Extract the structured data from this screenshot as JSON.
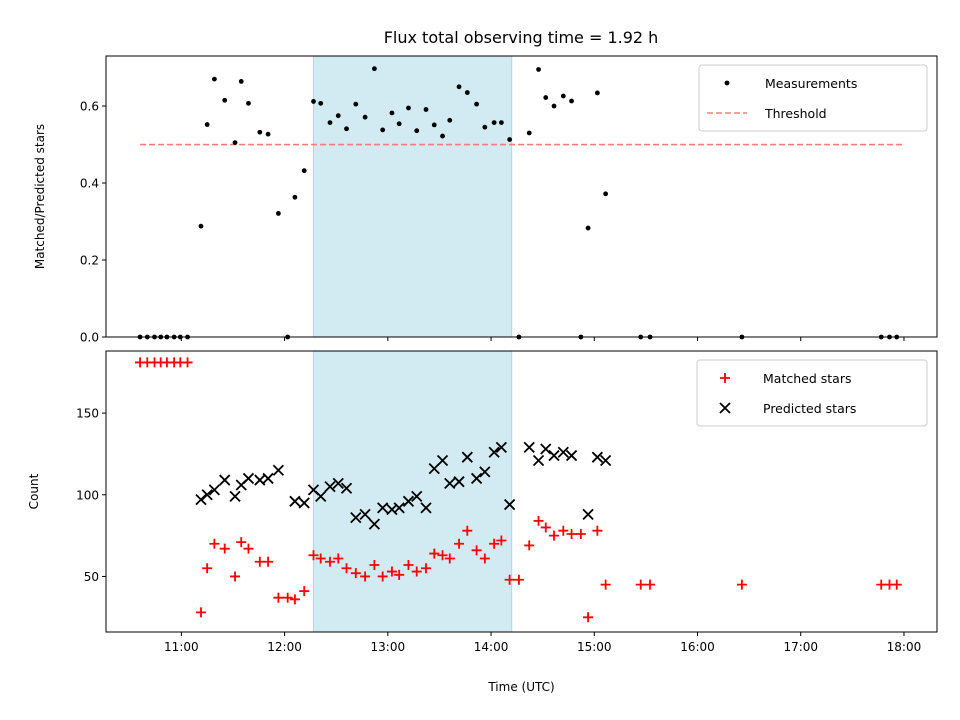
{
  "title": "Flux total observing time = 1.92 h",
  "colors": {
    "measurement": "#000000",
    "threshold": "#ff7b7b",
    "matched": "#ff0000",
    "predicted": "#000000",
    "span": "#add8e6"
  },
  "chart_data": [
    {
      "type": "scatter",
      "ylabel": "Matched/Predicted stars",
      "xlim": [
        10.27,
        18.32
      ],
      "ylim": [
        0,
        0.73
      ],
      "yticks": [
        "0.0",
        "0.2",
        "0.4",
        "0.6"
      ],
      "ytick_values": [
        0,
        0.2,
        0.4,
        0.6
      ],
      "xticks_at": [
        11,
        12,
        13,
        14,
        15,
        16,
        17,
        18
      ],
      "shaded_span": [
        12.28,
        14.2
      ],
      "legend": {
        "position": "upper right",
        "entries": [
          "Measurements",
          "Threshold"
        ]
      },
      "threshold": {
        "y": 0.5,
        "x_range": [
          10.6,
          18.0
        ]
      },
      "series": [
        {
          "name": "Measurements",
          "marker": "dot",
          "points": [
            [
              10.6,
              0
            ],
            [
              10.67,
              0
            ],
            [
              10.74,
              0
            ],
            [
              10.8,
              0
            ],
            [
              10.86,
              0
            ],
            [
              10.93,
              0
            ],
            [
              10.99,
              0
            ],
            [
              11.06,
              0
            ],
            [
              11.19,
              0.288
            ],
            [
              11.25,
              0.552
            ],
            [
              11.32,
              0.67
            ],
            [
              11.42,
              0.615
            ],
            [
              11.52,
              0.505
            ],
            [
              11.58,
              0.664
            ],
            [
              11.65,
              0.607
            ],
            [
              11.76,
              0.532
            ],
            [
              11.84,
              0.527
            ],
            [
              11.94,
              0.321
            ],
            [
              12.03,
              0
            ],
            [
              12.1,
              0.363
            ],
            [
              12.19,
              0.432
            ],
            [
              12.28,
              0.612
            ],
            [
              12.35,
              0.607
            ],
            [
              12.44,
              0.557
            ],
            [
              12.52,
              0.575
            ],
            [
              12.6,
              0.541
            ],
            [
              12.69,
              0.605
            ],
            [
              12.78,
              0.571
            ],
            [
              12.87,
              0.697
            ],
            [
              12.95,
              0.538
            ],
            [
              13.04,
              0.582
            ],
            [
              13.11,
              0.554
            ],
            [
              13.2,
              0.595
            ],
            [
              13.28,
              0.536
            ],
            [
              13.37,
              0.591
            ],
            [
              13.45,
              0.551
            ],
            [
              13.53,
              0.522
            ],
            [
              13.6,
              0.563
            ],
            [
              13.69,
              0.65
            ],
            [
              13.77,
              0.635
            ],
            [
              13.86,
              0.605
            ],
            [
              13.94,
              0.545
            ],
            [
              14.03,
              0.557
            ],
            [
              14.1,
              0.557
            ],
            [
              14.18,
              0.513
            ],
            [
              14.27,
              0
            ],
            [
              14.37,
              0.53
            ],
            [
              14.46,
              0.695
            ],
            [
              14.53,
              0.622
            ],
            [
              14.61,
              0.6
            ],
            [
              14.7,
              0.626
            ],
            [
              14.78,
              0.613
            ],
            [
              14.87,
              0
            ],
            [
              14.94,
              0.283
            ],
            [
              15.03,
              0.634
            ],
            [
              15.11,
              0.372
            ],
            [
              15.45,
              0
            ],
            [
              15.54,
              0
            ],
            [
              16.43,
              0
            ],
            [
              17.78,
              0
            ],
            [
              17.86,
              0
            ],
            [
              17.93,
              0
            ]
          ]
        }
      ]
    },
    {
      "type": "scatter",
      "xlabel": "Time (UTC)",
      "ylabel": "Count",
      "xlim": [
        10.27,
        18.32
      ],
      "ylim": [
        16,
        188
      ],
      "yticks": [
        "50",
        "100",
        "150"
      ],
      "ytick_values": [
        50,
        100,
        150
      ],
      "xticks": [
        "11:00",
        "12:00",
        "13:00",
        "14:00",
        "15:00",
        "16:00",
        "17:00",
        "18:00"
      ],
      "xtick_values": [
        11,
        12,
        13,
        14,
        15,
        16,
        17,
        18
      ],
      "shaded_span": [
        12.28,
        14.2
      ],
      "legend": {
        "position": "upper right",
        "entries": [
          "Matched stars",
          "Predicted stars"
        ]
      },
      "series": [
        {
          "name": "Matched stars",
          "marker": "plus",
          "points": [
            [
              10.6,
              181
            ],
            [
              10.67,
              181
            ],
            [
              10.74,
              181
            ],
            [
              10.8,
              181
            ],
            [
              10.86,
              181
            ],
            [
              10.93,
              181
            ],
            [
              10.99,
              181
            ],
            [
              11.06,
              181
            ],
            [
              11.19,
              28
            ],
            [
              11.25,
              55
            ],
            [
              11.32,
              70
            ],
            [
              11.42,
              67
            ],
            [
              11.52,
              50
            ],
            [
              11.58,
              71
            ],
            [
              11.65,
              67
            ],
            [
              11.76,
              59
            ],
            [
              11.84,
              59
            ],
            [
              11.94,
              37
            ],
            [
              12.03,
              37
            ],
            [
              12.1,
              36
            ],
            [
              12.19,
              41
            ],
            [
              12.28,
              63
            ],
            [
              12.35,
              61
            ],
            [
              12.44,
              59
            ],
            [
              12.52,
              61
            ],
            [
              12.6,
              55
            ],
            [
              12.69,
              52
            ],
            [
              12.78,
              50
            ],
            [
              12.87,
              57
            ],
            [
              12.95,
              50
            ],
            [
              13.04,
              53
            ],
            [
              13.11,
              51
            ],
            [
              13.2,
              57
            ],
            [
              13.28,
              53
            ],
            [
              13.37,
              55
            ],
            [
              13.45,
              64
            ],
            [
              13.53,
              63
            ],
            [
              13.6,
              61
            ],
            [
              13.69,
              70
            ],
            [
              13.77,
              78
            ],
            [
              13.86,
              66
            ],
            [
              13.94,
              61
            ],
            [
              14.03,
              70
            ],
            [
              14.1,
              72
            ],
            [
              14.18,
              48
            ],
            [
              14.27,
              48
            ],
            [
              14.37,
              69
            ],
            [
              14.46,
              84
            ],
            [
              14.53,
              80
            ],
            [
              14.61,
              75
            ],
            [
              14.7,
              78
            ],
            [
              14.78,
              76
            ],
            [
              14.87,
              76
            ],
            [
              14.94,
              25
            ],
            [
              15.03,
              78
            ],
            [
              15.11,
              45
            ],
            [
              15.45,
              45
            ],
            [
              15.54,
              45
            ],
            [
              16.43,
              45
            ],
            [
              17.78,
              45
            ],
            [
              17.86,
              45
            ],
            [
              17.93,
              45
            ]
          ]
        },
        {
          "name": "Predicted stars",
          "marker": "x",
          "points": [
            [
              11.19,
              97
            ],
            [
              11.25,
              100
            ],
            [
              11.32,
              103
            ],
            [
              11.42,
              109
            ],
            [
              11.52,
              99
            ],
            [
              11.58,
              106
            ],
            [
              11.65,
              110
            ],
            [
              11.76,
              109
            ],
            [
              11.84,
              110
            ],
            [
              11.94,
              115
            ],
            [
              12.1,
              96
            ],
            [
              12.19,
              95
            ],
            [
              12.28,
              103
            ],
            [
              12.35,
              99
            ],
            [
              12.44,
              105
            ],
            [
              12.52,
              107
            ],
            [
              12.6,
              104
            ],
            [
              12.69,
              86
            ],
            [
              12.78,
              88
            ],
            [
              12.87,
              82
            ],
            [
              12.95,
              92
            ],
            [
              13.04,
              91
            ],
            [
              13.11,
              92
            ],
            [
              13.2,
              96
            ],
            [
              13.28,
              99
            ],
            [
              13.37,
              92
            ],
            [
              13.45,
              116
            ],
            [
              13.53,
              121
            ],
            [
              13.6,
              107
            ],
            [
              13.69,
              108
            ],
            [
              13.77,
              123
            ],
            [
              13.86,
              110
            ],
            [
              13.94,
              114
            ],
            [
              14.03,
              126
            ],
            [
              14.1,
              129
            ],
            [
              14.18,
              94
            ],
            [
              14.37,
              129
            ],
            [
              14.46,
              121
            ],
            [
              14.53,
              128
            ],
            [
              14.61,
              124
            ],
            [
              14.7,
              126
            ],
            [
              14.78,
              124
            ],
            [
              14.94,
              88
            ],
            [
              15.03,
              123
            ],
            [
              15.11,
              121
            ]
          ]
        }
      ]
    }
  ]
}
